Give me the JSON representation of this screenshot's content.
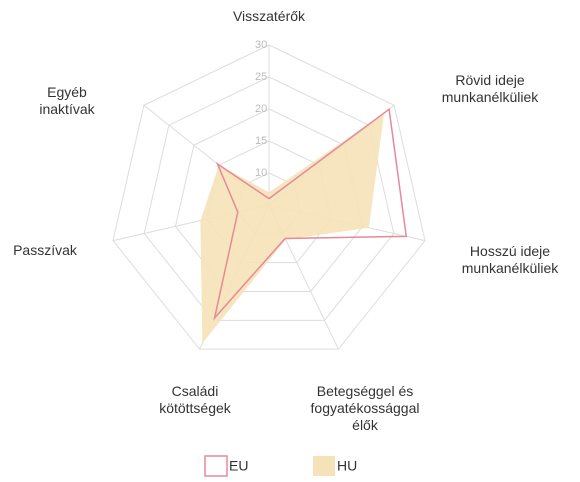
{
  "chart_data": {
    "type": "radar",
    "categories": [
      "Visszatérők",
      "Rövid ideje munkanélküliek",
      "Hosszú ideje munkanélküliek",
      "Betegséggel és fogyatékossággal élők",
      "Családi kötöttségek",
      "Passzívak",
      "Egyéb inaktívak"
    ],
    "series": [
      {
        "name": "EU",
        "color": "#e58a97",
        "values": [
          6,
          29,
          27,
          10.8,
          24.6,
          10,
          15.3
        ]
      },
      {
        "name": "HU",
        "color": "#f6e2b8",
        "values": [
          7,
          28,
          21,
          11,
          29,
          16,
          15
        ]
      }
    ],
    "ylim": [
      5,
      30
    ],
    "yticks": [
      10,
      15,
      20,
      25,
      30
    ],
    "grid": true
  }
}
